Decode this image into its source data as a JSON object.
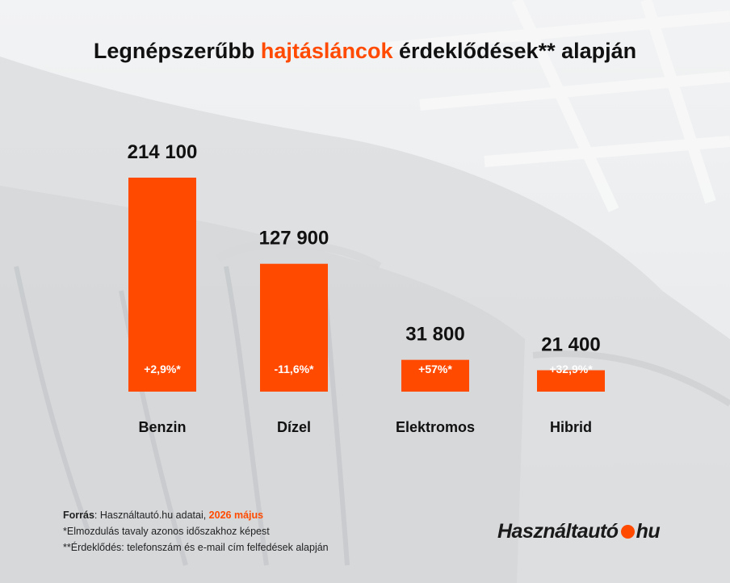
{
  "title": {
    "part1": "Legnépszerűbb ",
    "highlight": "hajtásláncok",
    "part2": " érdeklődések** alapján"
  },
  "chart_data": {
    "type": "bar",
    "categories": [
      "Benzin",
      "Dízel",
      "Elektromos",
      "Hibrid"
    ],
    "values": [
      214100,
      127900,
      31800,
      21400
    ],
    "value_labels": [
      "214 100",
      "127 900",
      "31 800",
      "21 400"
    ],
    "change_labels": [
      "+2,9%*",
      "-11,6%*",
      "+57%*",
      "+32,9%*"
    ],
    "bar_color": "#ff4a00",
    "title": "Legnépszerűbb hajtásláncok érdeklődések** alapján",
    "xlabel": "",
    "ylabel": ""
  },
  "footer": {
    "source_label": "Forrás",
    "source_text": ": Használtautó.hu adatai, ",
    "source_date": "2026 május",
    "note1": "*Elmozdulás tavaly azonos időszakhoz képest",
    "note2": "**Érdeklődés: telefonszám és e-mail cím felfedések alapján"
  },
  "logo": {
    "part1": "Használtautó",
    "part2": "hu"
  },
  "colors": {
    "accent": "#ff4a00",
    "text": "#111111"
  }
}
